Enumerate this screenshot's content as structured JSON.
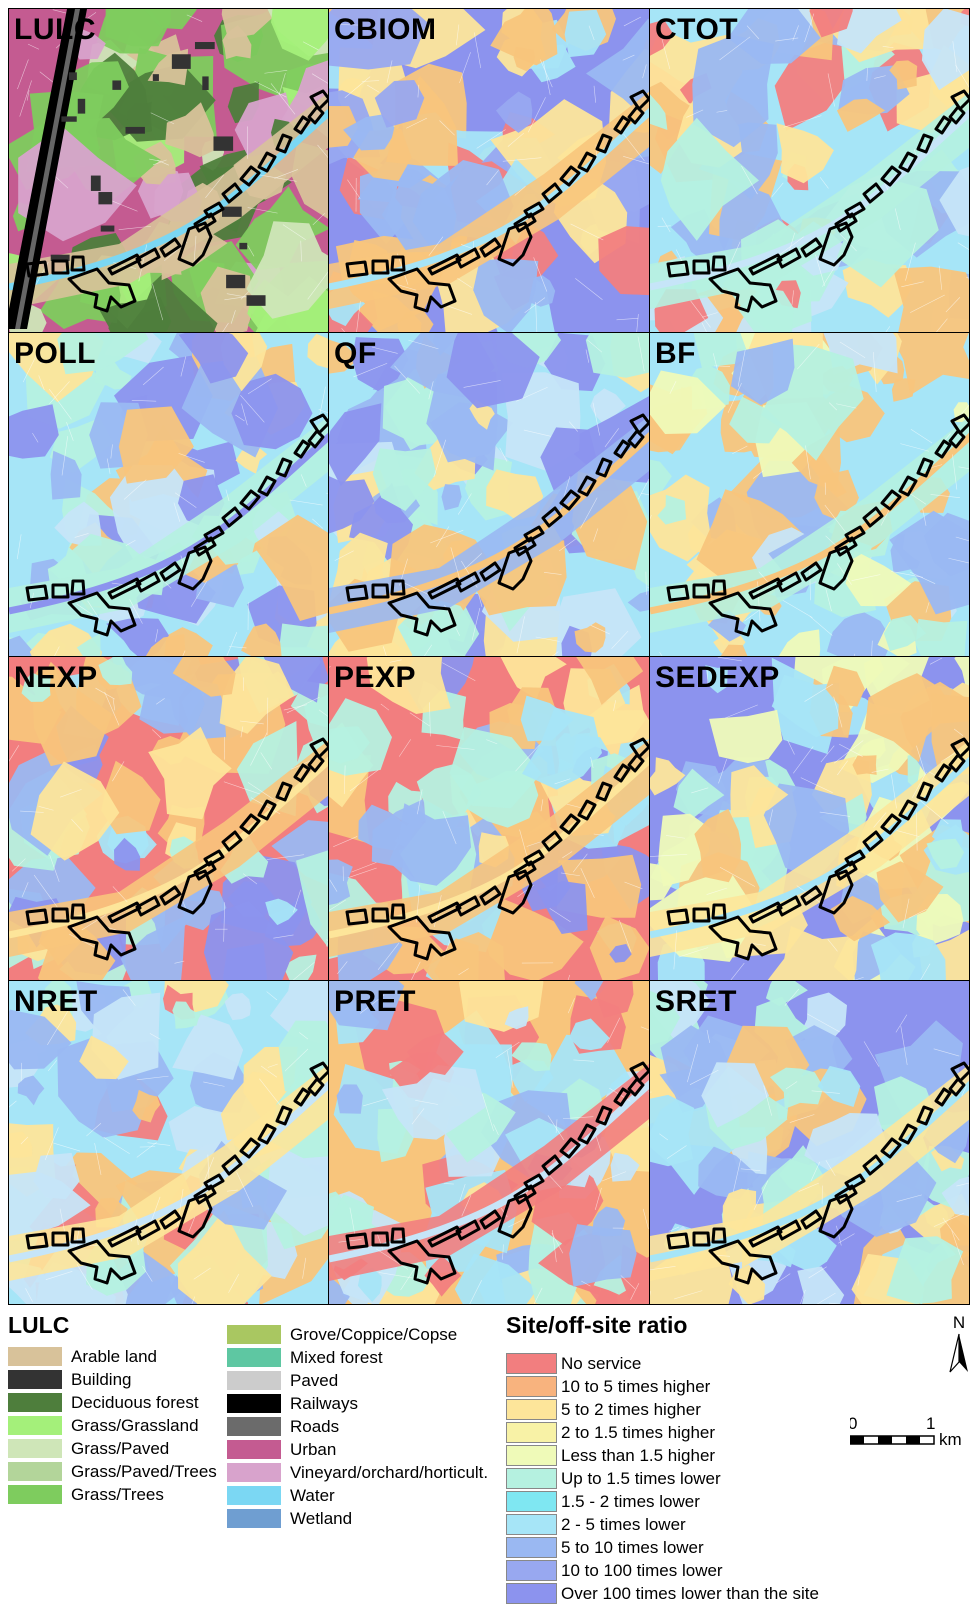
{
  "panels": [
    {
      "title": "LULC",
      "kind": "lulc"
    },
    {
      "title": "CBIOM",
      "kind": "ratio",
      "colors": [
        "#8c93ee",
        "#98a8f0",
        "#f27e7f",
        "#f8c57c",
        "#a6e4f7",
        "#fde59a",
        "#9ab8f2"
      ]
    },
    {
      "title": "CTOT",
      "kind": "ratio",
      "colors": [
        "#a6e5f7",
        "#f27e7f",
        "#f8c57c",
        "#b5f1e0",
        "#c6e5f8",
        "#fde59a",
        "#9ab8f2"
      ]
    },
    {
      "title": "POLL",
      "kind": "ratio",
      "colors": [
        "#a6e5f7",
        "#9ab8f2",
        "#fde59a",
        "#b5f1e0",
        "#8c93ee",
        "#c6e5f8",
        "#f8c57c"
      ]
    },
    {
      "title": "QF",
      "kind": "ratio",
      "colors": [
        "#a6e5f7",
        "#8c93ee",
        "#fde59a",
        "#9ab8f2",
        "#f8c57c",
        "#b5f1e0",
        "#c6e5f8"
      ]
    },
    {
      "title": "BF",
      "kind": "ratio",
      "colors": [
        "#a6e5f7",
        "#c6e5f8",
        "#fde59a",
        "#b5f1e0",
        "#f8c57c",
        "#9ab8f2",
        "#effab8"
      ]
    },
    {
      "title": "NEXP",
      "kind": "ratio",
      "colors": [
        "#f27e7f",
        "#8c93ee",
        "#9ab8f2",
        "#f8c57c",
        "#fde59a",
        "#a6e5f7",
        "#b5f1e0"
      ]
    },
    {
      "title": "PEXP",
      "kind": "ratio",
      "colors": [
        "#f27e7f",
        "#9ab8f2",
        "#8c93ee",
        "#f8c57c",
        "#fde59a",
        "#a6e5f7",
        "#b5f1e0"
      ]
    },
    {
      "title": "SEDEXP",
      "kind": "ratio",
      "colors": [
        "#8c93ee",
        "#9ab8f2",
        "#f8c57c",
        "#fde59a",
        "#a6e5f7",
        "#effab8",
        "#b5f1e0"
      ]
    },
    {
      "title": "NRET",
      "kind": "ratio",
      "colors": [
        "#a6e5f7",
        "#f8c57c",
        "#f27e7f",
        "#fde59a",
        "#c6e5f8",
        "#b5f1e0",
        "#9ab8f2"
      ]
    },
    {
      "title": "PRET",
      "kind": "ratio",
      "colors": [
        "#f8c57c",
        "#a6e5f7",
        "#fde59a",
        "#f27e7f",
        "#c6e5f8",
        "#b5f1e0",
        "#9ab8f2"
      ]
    },
    {
      "title": "SRET",
      "kind": "ratio",
      "colors": [
        "#8c93ee",
        "#9ab8f2",
        "#f8c57c",
        "#fde59a",
        "#a6e5f7",
        "#b5f1e0",
        "#c6e5f8"
      ]
    }
  ],
  "lulc_legend": {
    "title": "LULC",
    "items": [
      {
        "label": "Arable land",
        "color": "#d8c29a"
      },
      {
        "label": "Building",
        "color": "#333333"
      },
      {
        "label": "Deciduous forest",
        "color": "#4e7e3c"
      },
      {
        "label": "Grass/Grassland",
        "color": "#a4f07a"
      },
      {
        "label": "Grass/Paved",
        "color": "#cfe6b8"
      },
      {
        "label": "Grass/Paved/Trees",
        "color": "#b3d59a"
      },
      {
        "label": "Grass/Trees",
        "color": "#7ecc5e"
      },
      {
        "label": "Grove/Coppice/Copse",
        "color": "#a9c761"
      },
      {
        "label": "Mixed forest",
        "color": "#5ec7a2"
      },
      {
        "label": "Paved",
        "color": "#cccccc"
      },
      {
        "label": "Railways",
        "color": "#000000"
      },
      {
        "label": "Roads",
        "color": "#6b6b6b"
      },
      {
        "label": "Urban",
        "color": "#c45b91"
      },
      {
        "label": "Vineyard/orchard/horticult.",
        "color": "#d8a3cc"
      },
      {
        "label": "Water",
        "color": "#7bd7f3"
      },
      {
        "label": "Wetland",
        "color": "#6f9ed1"
      }
    ]
  },
  "ratio_legend": {
    "title": "Site/off-site ratio",
    "items": [
      {
        "label": "No service",
        "color": "#f27e7f"
      },
      {
        "label": "10 to 5 times higher",
        "color": "#f8b37e"
      },
      {
        "label": "5 to 2 times higher",
        "color": "#fde59a"
      },
      {
        "label": "2 to 1.5 times higher",
        "color": "#f8f2a6"
      },
      {
        "label": "Less than 1.5 higher",
        "color": "#effab8"
      },
      {
        "label": "Up to 1.5 times lower",
        "color": "#b5f1e0"
      },
      {
        "label": "1.5 - 2 times lower",
        "color": "#7fe7f2"
      },
      {
        "label": "2 - 5 times lower",
        "color": "#a6e5f7"
      },
      {
        "label": "5 to 10 times lower",
        "color": "#9ab8f2"
      },
      {
        "label": "10 to 100 times lower",
        "color": "#98a8f0"
      },
      {
        "label": "Over 100 times lower than the site",
        "color": "#8c93ee"
      }
    ]
  },
  "scale_bar": {
    "start": "0",
    "end": "1",
    "unit": "km"
  },
  "north_arrow": {
    "label": "N"
  }
}
